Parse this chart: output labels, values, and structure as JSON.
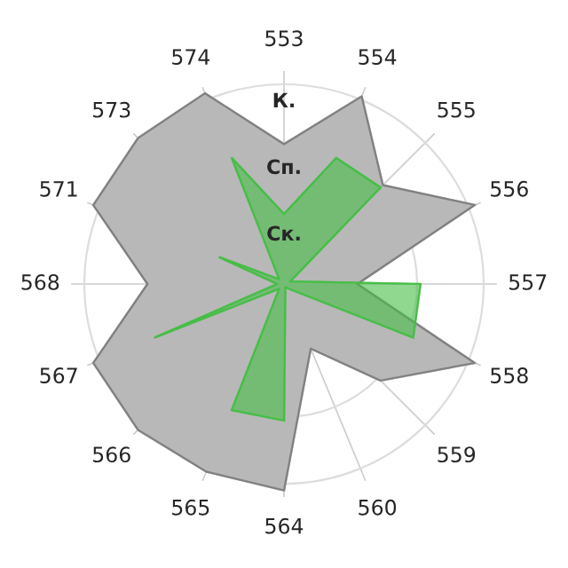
{
  "chart_data": {
    "type": "radar",
    "categories": [
      "553",
      "554",
      "555",
      "556",
      "557",
      "558",
      "559",
      "560",
      "564",
      "565",
      "566",
      "567",
      "568",
      "571",
      "573",
      "574"
    ],
    "series": [
      {
        "color": "#b8b8b8",
        "values": [
          2.1,
          3.05,
          2.1,
          3.1,
          1.1,
          3.1,
          2.05,
          1.05,
          3.1,
          3.05,
          3.1,
          3.1,
          2.05,
          3.1,
          3.1,
          3.1
        ]
      },
      {
        "color": "#46be46",
        "values": [
          1.05,
          2.05,
          2.05,
          0.1,
          2.05,
          2.1,
          0.1,
          0.05,
          2.05,
          2.05,
          0.1,
          2.1,
          0.1,
          1.05,
          0.1,
          2.05
        ]
      }
    ],
    "ylim": [
      0,
      3.2
    ],
    "yticks": [
      {
        "value": 1,
        "label": "Ск."
      },
      {
        "value": 2,
        "label": "Сп."
      },
      {
        "value": 3,
        "label": "К."
      }
    ],
    "grid": true
  }
}
